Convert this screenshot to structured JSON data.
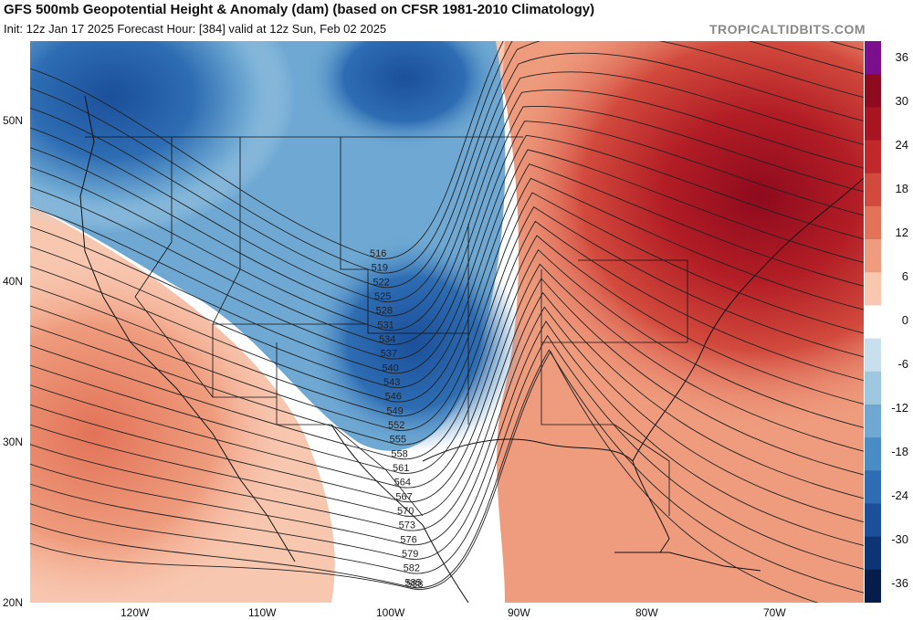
{
  "header": {
    "title": "GFS 500mb Geopotential Height & Anomaly (dam) (based on CFSR 1981-2010 Climatology)",
    "subtitle": "Init: 12z Jan 17 2025   Forecast Hour: [384]   valid at 12z Sun, Feb 02 2025",
    "brand": "TROPICALTIDBITS.COM"
  },
  "axes": {
    "lat_labels": [
      "50N",
      "40N",
      "30N",
      "20N"
    ],
    "lon_labels": [
      "120W",
      "110W",
      "100W",
      "90W",
      "80W",
      "70W"
    ]
  },
  "colorbar": {
    "labels": [
      "36",
      "30",
      "24",
      "18",
      "12",
      "6",
      "0",
      "-6",
      "-12",
      "-18",
      "-24",
      "-30",
      "-36"
    ],
    "colors": [
      "#7b0f8e",
      "#8e0a1e",
      "#a8141f",
      "#c0292c",
      "#d24a3d",
      "#e27358",
      "#ef9c7e",
      "#f8c7b0",
      "#ffffff",
      "#c8dfee",
      "#9ec8e0",
      "#6fa9d3",
      "#4a8cc6",
      "#2e6db3",
      "#1b4f9a",
      "#0d3474",
      "#061c4a"
    ]
  },
  "height_labels": [
    "516",
    "519",
    "522",
    "525",
    "528",
    "531",
    "534",
    "537",
    "540",
    "543",
    "546",
    "549",
    "552",
    "555",
    "558",
    "561",
    "564",
    "567",
    "570",
    "573",
    "576",
    "579",
    "582",
    "585",
    "588"
  ],
  "anomaly_centers": {
    "trough_color": "#1f5aa3",
    "ridge_color": "#9e1020"
  }
}
